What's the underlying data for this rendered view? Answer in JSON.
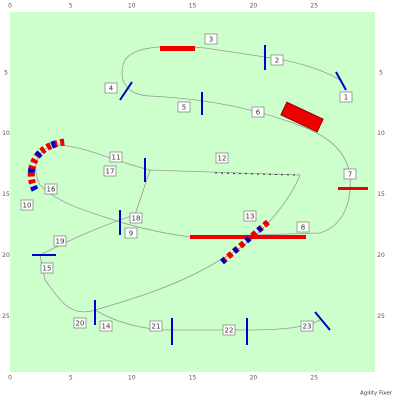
{
  "ruler": {
    "top": [
      0,
      5,
      10,
      15,
      20,
      25
    ],
    "bottom": [
      0,
      5,
      10,
      15,
      20,
      25
    ],
    "left": [
      5,
      10,
      15,
      20,
      25
    ],
    "right": [
      5,
      10,
      15,
      20,
      25
    ]
  },
  "obstacles": [
    "1",
    "2",
    "3",
    "4",
    "5",
    "6",
    "7",
    "8",
    "9",
    "10",
    "11",
    "12",
    "13",
    "14",
    "15",
    "16",
    "17",
    "18",
    "19",
    "20",
    "21",
    "22",
    "23"
  ],
  "footer": "Agility Fixer"
}
